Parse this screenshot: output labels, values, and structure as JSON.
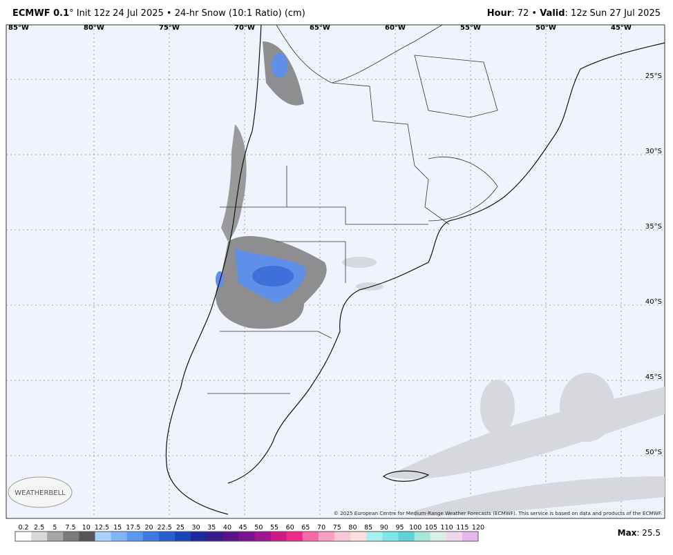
{
  "header": {
    "model": "ECMWF 0.1",
    "description": "° Init 12z 24 Jul 2025 • 24-hr Snow (10:1 Ratio) (cm)",
    "hour_label": "Hour",
    "hour_value": ": 72 • ",
    "valid_label": "Valid",
    "valid_value": ": 12z Sun 27 Jul 2025"
  },
  "longitudes": [
    "85°W",
    "80°W",
    "75°W",
    "70°W",
    "65°W",
    "60°W",
    "55°W",
    "50°W",
    "45°W"
  ],
  "latitudes": [
    "25°S",
    "30°S",
    "35°S",
    "40°S",
    "45°S",
    "50°S"
  ],
  "logo": "WEATHERBELL",
  "copyright": "© 2025 European Centre for Medium-Range Weather Forecasts (ECMWF). This service is based on data and products of the ECMWF.",
  "colorbar": {
    "labels": [
      0.2,
      2.5,
      5,
      7.5,
      10,
      12.5,
      15,
      17.5,
      20,
      22.5,
      25,
      30,
      35,
      40,
      45,
      50,
      55,
      60,
      65,
      70,
      75,
      80,
      85,
      90,
      95,
      100,
      105,
      110,
      115,
      120
    ],
    "colors": [
      "#ffffff",
      "#d9d9d9",
      "#a6a6a6",
      "#7a7a7a",
      "#555555",
      "#a9d1fb",
      "#7fb6f7",
      "#5a98ef",
      "#3c7be3",
      "#285fd0",
      "#1a45b8",
      "#1a2a9c",
      "#3a1a8a",
      "#5a128a",
      "#7a1290",
      "#a0148e",
      "#cc1a88",
      "#ee2a86",
      "#f56aa6",
      "#f7a0c2",
      "#f8c7d8",
      "#ffdede",
      "#aaf0ee",
      "#7ce8e8",
      "#5fd3d8",
      "#a8e8d8",
      "#d8f0e8",
      "#f0d8ec",
      "#e6b8ee"
    ]
  },
  "max": {
    "label": "Max",
    "value": ": 25.5"
  }
}
